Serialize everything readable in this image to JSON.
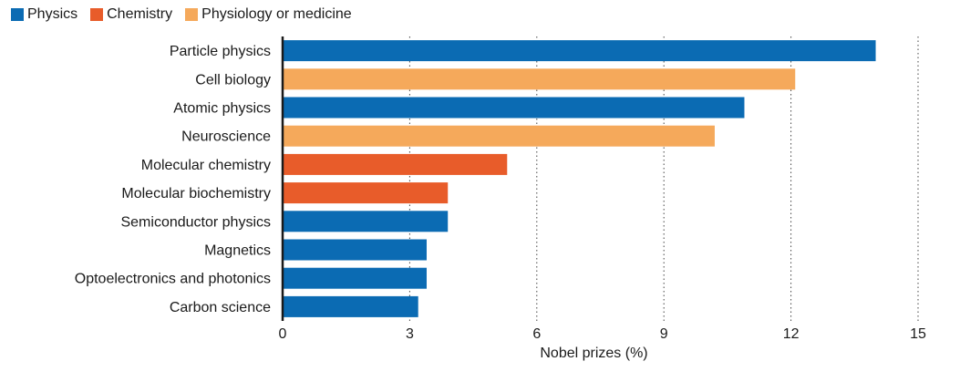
{
  "chart_data": {
    "type": "bar",
    "orientation": "horizontal",
    "categories": [
      "Particle physics",
      "Cell biology",
      "Atomic physics",
      "Neuroscience",
      "Molecular chemistry",
      "Molecular biochemistry",
      "Semiconductor physics",
      "Magnetics",
      "Optoelectronics and photonics",
      "Carbon science"
    ],
    "values": [
      14.0,
      12.1,
      10.9,
      10.2,
      5.3,
      3.9,
      3.9,
      3.4,
      3.4,
      3.2
    ],
    "groups": [
      "Physics",
      "Physiology or medicine",
      "Physics",
      "Physiology or medicine",
      "Chemistry",
      "Chemistry",
      "Physics",
      "Physics",
      "Physics",
      "Physics"
    ],
    "legend": [
      {
        "name": "Physics",
        "color": "#0b6bb3"
      },
      {
        "name": "Chemistry",
        "color": "#e85c2a"
      },
      {
        "name": "Physiology or medicine",
        "color": "#f5a95b"
      }
    ],
    "xlabel": "Nobel prizes (%)",
    "xlim": [
      0,
      15
    ],
    "xticks": [
      0,
      3,
      6,
      9,
      12,
      15
    ],
    "grid": "vertical dotted",
    "legend_position": "top-left"
  }
}
